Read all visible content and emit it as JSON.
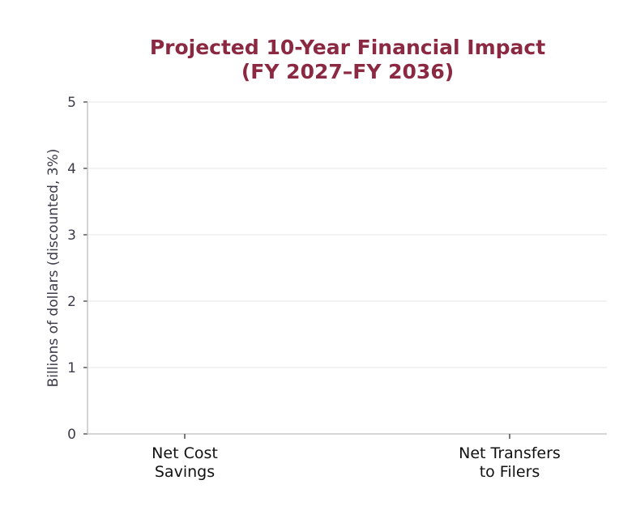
{
  "chart_data": {
    "type": "bar",
    "title_lines": [
      "Projected 10-Year Financial Impact",
      "(FY 2027–FY 2036)"
    ],
    "xlabel": "",
    "ylabel": "Billions of dollars (discounted, 3%)",
    "categories": [
      [
        "Net Cost",
        "Savings"
      ],
      [
        "Net Transfers",
        "to Filers"
      ]
    ],
    "series": [
      {
        "values": [
          null,
          null
        ]
      }
    ],
    "ylim": [
      0,
      5
    ],
    "yticks": [
      "0",
      "1",
      "2",
      "3",
      "4",
      "5"
    ],
    "grid": true,
    "legend": "none"
  },
  "colors": {
    "title": "#8b2942",
    "axis_text": "#3c3c4a",
    "category_text": "#111111",
    "axis_line": "#bdbdbd",
    "grid": "#e9e9e9",
    "tick": "#333333"
  }
}
